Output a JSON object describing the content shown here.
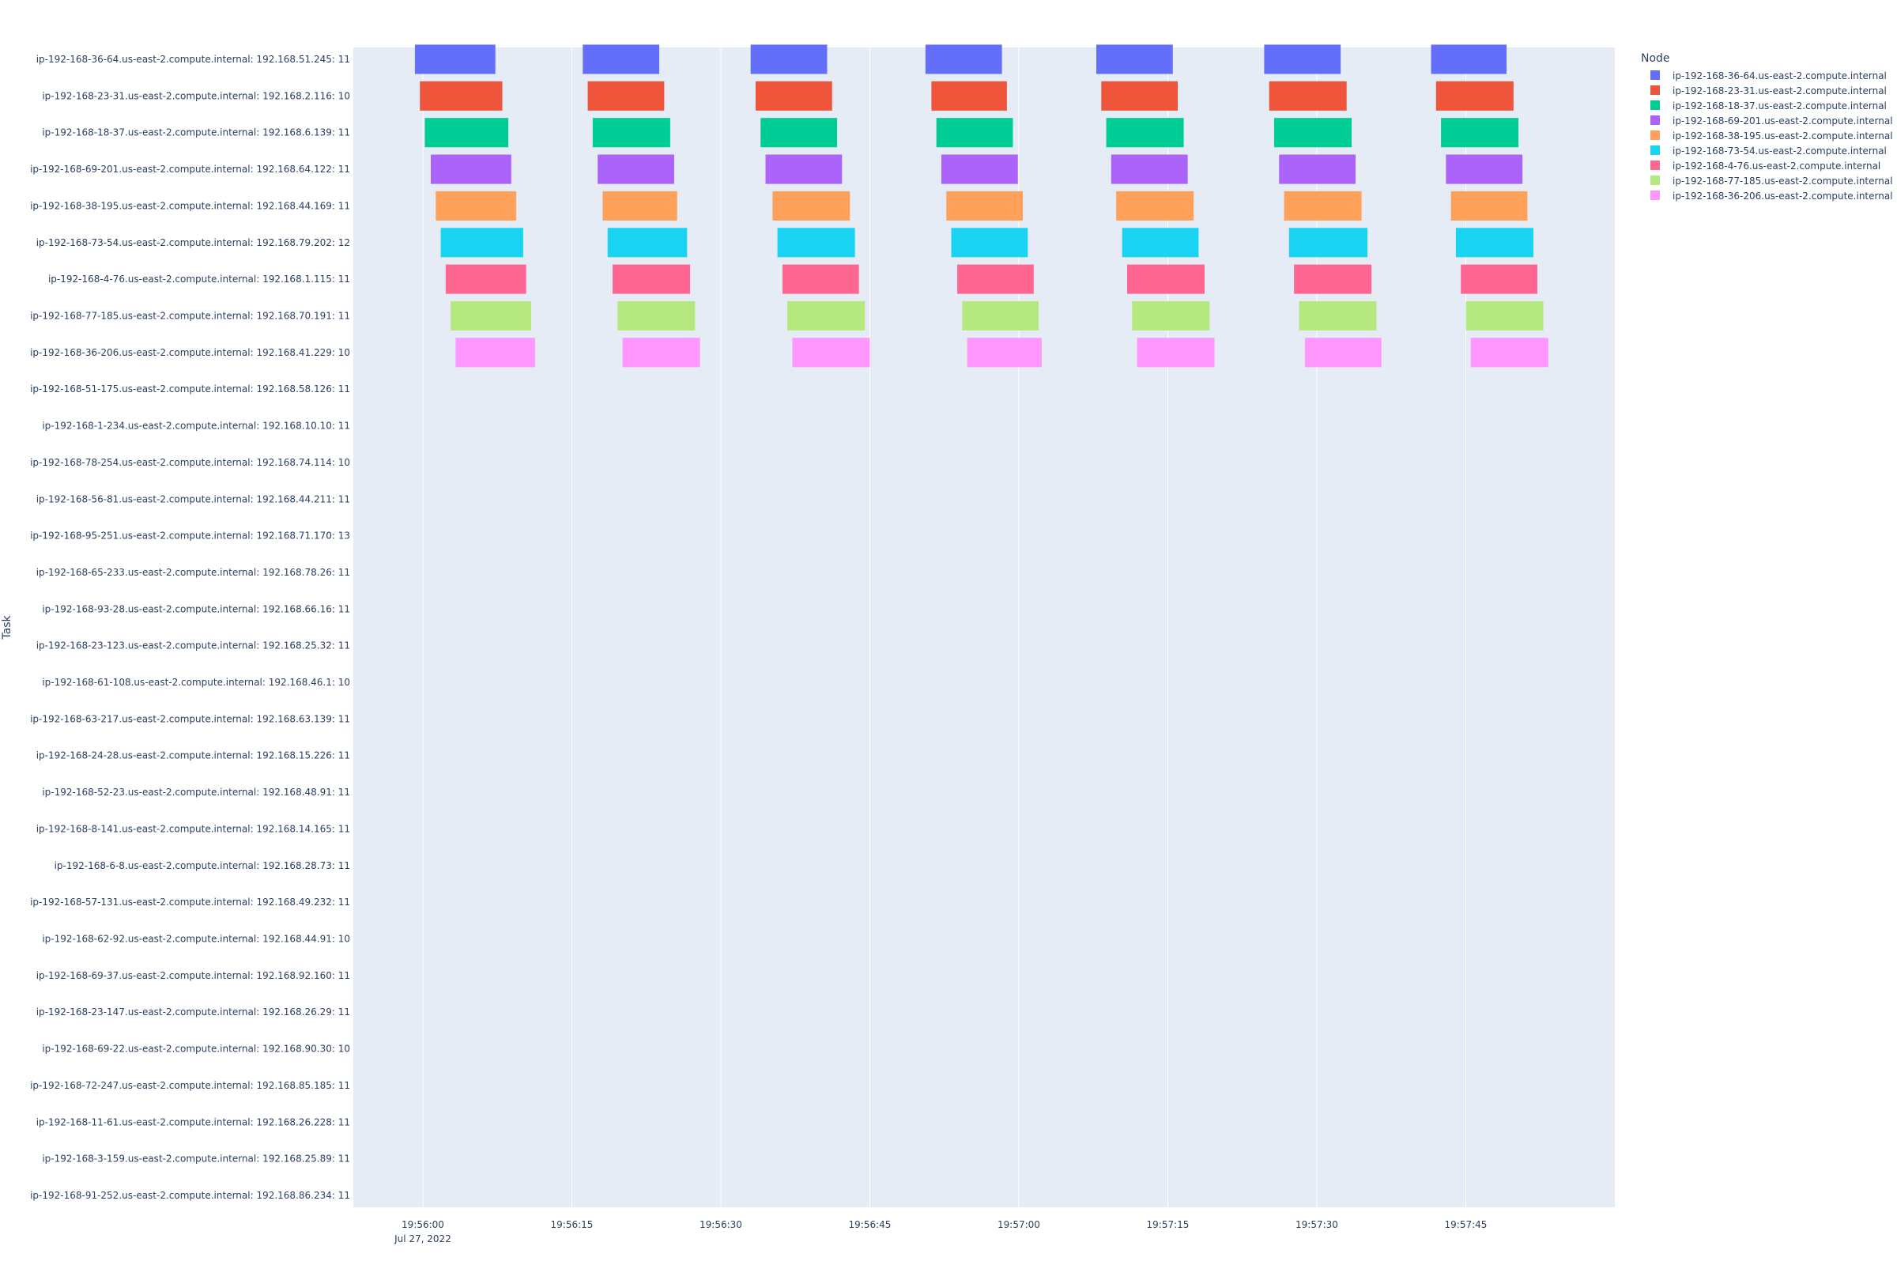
{
  "chart_data": {
    "type": "gantt",
    "ylabel": "Task",
    "legend_title": "Node",
    "legend_position": "right",
    "grid": true,
    "x_ticks": [
      "19:56:00",
      "19:56:15",
      "19:56:30",
      "19:56:45",
      "19:57:00",
      "19:57:15",
      "19:57:30",
      "19:57:45"
    ],
    "x_date_label": "Jul 27, 2022",
    "xlim": [
      "19:55:53",
      "19:58:00"
    ],
    "tasks": [
      "ip-192-168-36-64.us-east-2.compute.internal: 192.168.51.245: 11",
      "ip-192-168-23-31.us-east-2.compute.internal: 192.168.2.116: 10",
      "ip-192-168-18-37.us-east-2.compute.internal: 192.168.6.139: 11",
      "ip-192-168-69-201.us-east-2.compute.internal: 192.168.64.122: 11",
      "ip-192-168-38-195.us-east-2.compute.internal: 192.168.44.169: 11",
      "ip-192-168-73-54.us-east-2.compute.internal: 192.168.79.202: 12",
      "ip-192-168-4-76.us-east-2.compute.internal: 192.168.1.115: 11",
      "ip-192-168-77-185.us-east-2.compute.internal: 192.168.70.191: 11",
      "ip-192-168-36-206.us-east-2.compute.internal: 192.168.41.229: 10",
      "ip-192-168-51-175.us-east-2.compute.internal: 192.168.58.126: 11",
      "ip-192-168-1-234.us-east-2.compute.internal: 192.168.10.10: 11",
      "ip-192-168-78-254.us-east-2.compute.internal: 192.168.74.114: 10",
      "ip-192-168-56-81.us-east-2.compute.internal: 192.168.44.211: 11",
      "ip-192-168-95-251.us-east-2.compute.internal: 192.168.71.170: 13",
      "ip-192-168-65-233.us-east-2.compute.internal: 192.168.78.26: 11",
      "ip-192-168-93-28.us-east-2.compute.internal: 192.168.66.16: 11",
      "ip-192-168-23-123.us-east-2.compute.internal: 192.168.25.32: 11",
      "ip-192-168-61-108.us-east-2.compute.internal: 192.168.46.1: 10",
      "ip-192-168-63-217.us-east-2.compute.internal: 192.168.63.139: 11",
      "ip-192-168-24-28.us-east-2.compute.internal: 192.168.15.226: 11",
      "ip-192-168-52-23.us-east-2.compute.internal: 192.168.48.91: 11",
      "ip-192-168-8-141.us-east-2.compute.internal: 192.168.14.165: 11",
      "ip-192-168-6-8.us-east-2.compute.internal: 192.168.28.73: 11",
      "ip-192-168-57-131.us-east-2.compute.internal: 192.168.49.232: 11",
      "ip-192-168-62-92.us-east-2.compute.internal: 192.168.44.91: 10",
      "ip-192-168-69-37.us-east-2.compute.internal: 192.168.92.160: 11",
      "ip-192-168-23-147.us-east-2.compute.internal: 192.168.26.29: 11",
      "ip-192-168-69-22.us-east-2.compute.internal: 192.168.90.30: 10",
      "ip-192-168-72-247.us-east-2.compute.internal: 192.168.85.185: 11",
      "ip-192-168-11-61.us-east-2.compute.internal: 192.168.26.228: 11",
      "ip-192-168-3-159.us-east-2.compute.internal: 192.168.25.89: 11",
      "ip-192-168-91-252.us-east-2.compute.internal: 192.168.86.234: 11"
    ],
    "series": [
      {
        "name": "ip-192-168-36-64.us-east-2.compute.internal",
        "color": "#636efa",
        "bars": [
          [
            "19:55:59.2",
            "19:56:07.3"
          ],
          [
            "19:56:16.1",
            "19:56:23.8"
          ],
          [
            "19:56:33.0",
            "19:56:40.7"
          ],
          [
            "19:56:50.6",
            "19:56:58.3"
          ],
          [
            "19:57:07.8",
            "19:57:15.5"
          ],
          [
            "19:57:24.7",
            "19:57:32.4"
          ],
          [
            "19:57:41.5",
            "19:57:49.1"
          ]
        ]
      },
      {
        "name": "ip-192-168-23-31.us-east-2.compute.internal",
        "color": "#ef553b",
        "bars": [
          [
            "19:55:59.7",
            "19:56:08.0"
          ],
          [
            "19:56:16.6",
            "19:56:24.3"
          ],
          [
            "19:56:33.5",
            "19:56:41.2"
          ],
          [
            "19:56:51.2",
            "19:56:58.8"
          ],
          [
            "19:57:08.3",
            "19:57:16.0"
          ],
          [
            "19:57:25.2",
            "19:57:33.0"
          ],
          [
            "19:57:42.0",
            "19:57:49.8"
          ]
        ]
      },
      {
        "name": "ip-192-168-18-37.us-east-2.compute.internal",
        "color": "#00cc96",
        "bars": [
          [
            "19:56:00.2",
            "19:56:08.6"
          ],
          [
            "19:56:17.1",
            "19:56:24.9"
          ],
          [
            "19:56:34.0",
            "19:56:41.7"
          ],
          [
            "19:56:51.7",
            "19:56:59.4"
          ],
          [
            "19:57:08.8",
            "19:57:16.6"
          ],
          [
            "19:57:25.7",
            "19:57:33.5"
          ],
          [
            "19:57:42.5",
            "19:57:50.3"
          ]
        ]
      },
      {
        "name": "ip-192-168-69-201.us-east-2.compute.internal",
        "color": "#ab63fa",
        "bars": [
          [
            "19:56:00.8",
            "19:56:08.9"
          ],
          [
            "19:56:17.6",
            "19:56:25.3"
          ],
          [
            "19:56:34.5",
            "19:56:42.2"
          ],
          [
            "19:56:52.2",
            "19:56:59.9"
          ],
          [
            "19:57:09.3",
            "19:57:17.0"
          ],
          [
            "19:57:26.2",
            "19:57:33.9"
          ],
          [
            "19:57:43.0",
            "19:57:50.7"
          ]
        ]
      },
      {
        "name": "ip-192-168-38-195.us-east-2.compute.internal",
        "color": "#ffa15a",
        "bars": [
          [
            "19:56:01.3",
            "19:56:09.4"
          ],
          [
            "19:56:18.1",
            "19:56:25.6"
          ],
          [
            "19:56:35.2",
            "19:56:43.0"
          ],
          [
            "19:56:52.7",
            "19:57:00.4"
          ],
          [
            "19:57:09.8",
            "19:57:17.6"
          ],
          [
            "19:57:26.7",
            "19:57:34.5"
          ],
          [
            "19:57:43.5",
            "19:57:51.2"
          ]
        ]
      },
      {
        "name": "ip-192-168-73-54.us-east-2.compute.internal",
        "color": "#19d3f3",
        "bars": [
          [
            "19:56:01.8",
            "19:56:10.1"
          ],
          [
            "19:56:18.6",
            "19:56:26.6"
          ],
          [
            "19:56:35.7",
            "19:56:43.5"
          ],
          [
            "19:56:53.2",
            "19:57:00.9"
          ],
          [
            "19:57:10.4",
            "19:57:18.1"
          ],
          [
            "19:57:27.2",
            "19:57:35.1"
          ],
          [
            "19:57:44.0",
            "19:57:51.8"
          ]
        ]
      },
      {
        "name": "ip-192-168-4-76.us-east-2.compute.internal",
        "color": "#ff6692",
        "bars": [
          [
            "19:56:02.3",
            "19:56:10.4"
          ],
          [
            "19:56:19.1",
            "19:56:26.9"
          ],
          [
            "19:56:36.2",
            "19:56:43.9"
          ],
          [
            "19:56:53.8",
            "19:57:01.5"
          ],
          [
            "19:57:10.9",
            "19:57:18.7"
          ],
          [
            "19:57:27.7",
            "19:57:35.5"
          ],
          [
            "19:57:44.5",
            "19:57:52.2"
          ]
        ]
      },
      {
        "name": "ip-192-168-77-185.us-east-2.compute.internal",
        "color": "#b6e880",
        "bars": [
          [
            "19:56:02.8",
            "19:56:10.9"
          ],
          [
            "19:56:19.6",
            "19:56:27.4"
          ],
          [
            "19:56:36.7",
            "19:56:44.5"
          ],
          [
            "19:56:54.3",
            "19:57:02.0"
          ],
          [
            "19:57:11.4",
            "19:57:19.2"
          ],
          [
            "19:57:28.2",
            "19:57:36.0"
          ],
          [
            "19:57:45.0",
            "19:57:52.8"
          ]
        ]
      },
      {
        "name": "ip-192-168-36-206.us-east-2.compute.internal",
        "color": "#ff97ff",
        "bars": [
          [
            "19:56:03.3",
            "19:56:11.3"
          ],
          [
            "19:56:20.1",
            "19:56:27.9"
          ],
          [
            "19:56:37.2",
            "19:56:45.0"
          ],
          [
            "19:56:54.8",
            "19:57:02.3"
          ],
          [
            "19:57:11.9",
            "19:57:19.7"
          ],
          [
            "19:57:28.8",
            "19:57:36.5"
          ],
          [
            "19:57:45.5",
            "19:57:53.3"
          ]
        ]
      }
    ]
  }
}
